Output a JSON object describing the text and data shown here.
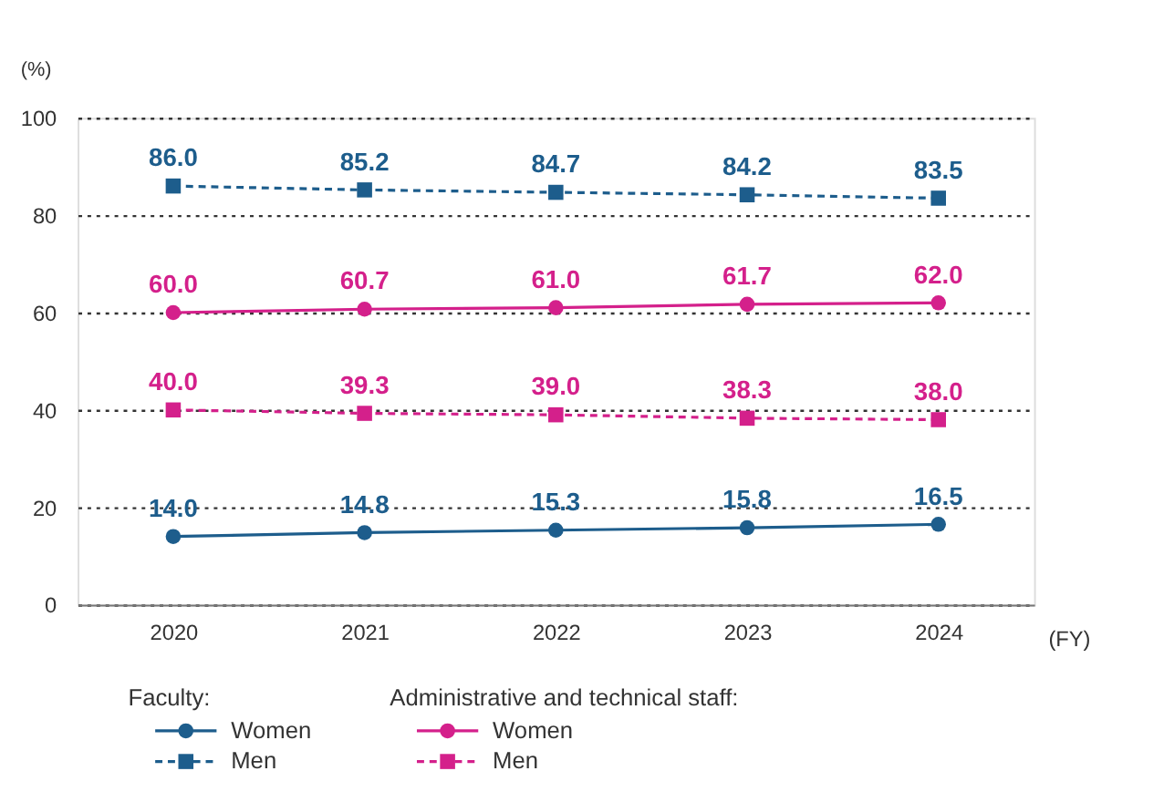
{
  "chart_data": {
    "type": "line",
    "ylabel": "(%)",
    "xlabel": "(FY)",
    "legend_title": [
      "Faculty:",
      "Administrative and technical staff:"
    ],
    "categories": [
      "2020",
      "2021",
      "2022",
      "2023",
      "2024"
    ],
    "series": [
      {
        "name": "Women",
        "color": "#1d5d8c",
        "values": [
          14.0,
          14.8,
          15.3,
          15.8,
          16.5
        ],
        "value_labels": [
          "14.0",
          "14.8",
          "15.3",
          "15.8",
          "16.5"
        ],
        "marker": "circle",
        "line_style": "solid"
      },
      {
        "name": "Men",
        "color": "#1d5d8c",
        "values": [
          86.0,
          85.2,
          84.7,
          84.2,
          83.5
        ],
        "value_labels": [
          "86.0",
          "85.2",
          "84.7",
          "84.2",
          "83.5"
        ],
        "marker": "square",
        "line_style": "dashed"
      },
      {
        "name": "Women",
        "color": "#d4208b",
        "values": [
          60.0,
          60.7,
          61.0,
          61.7,
          62.0
        ],
        "value_labels": [
          "60.0",
          "60.7",
          "61.0",
          "61.7",
          "62.0"
        ],
        "marker": "circle",
        "line_style": "solid"
      },
      {
        "name": "Men",
        "color": "#d4208b",
        "values": [
          40.0,
          39.3,
          39.0,
          38.3,
          38.0
        ],
        "value_labels": [
          "40.0",
          "39.3",
          "39.0",
          "38.3",
          "38.0"
        ],
        "marker": "square",
        "line_style": "dashed"
      }
    ],
    "ylim": [
      0,
      100
    ],
    "yticks": [
      0,
      20,
      40,
      60,
      80,
      100
    ],
    "grid": "y",
    "legend": "bottom"
  }
}
